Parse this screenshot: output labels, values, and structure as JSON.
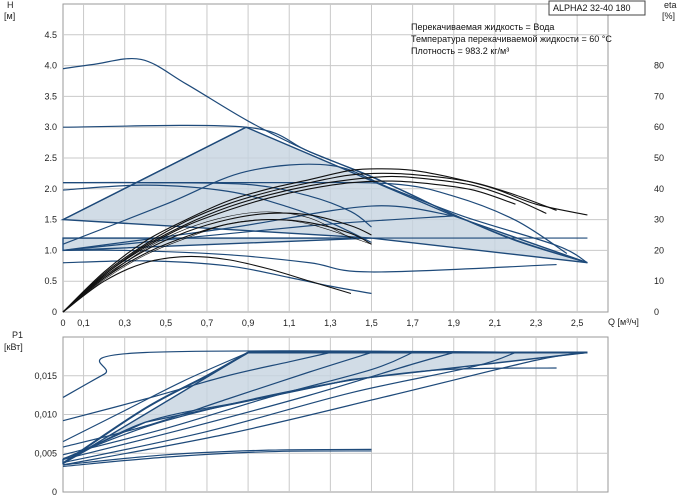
{
  "title": "ALPHA2 32-40 180",
  "info_lines": [
    "Перекачиваемая жидкость = Вода",
    "Температура перекачиваемой жидкости = 60 °C",
    "Плотность = 983.2 кг/м³"
  ],
  "chart_data": [
    {
      "type": "line",
      "name": "QH",
      "ylabel_line1": "H",
      "ylabel_line2": "[м]",
      "y2label_line1": "eta",
      "y2label_line2": "[%]",
      "xlabel": "Q [м³/ч]",
      "xlim": [
        0,
        2.65
      ],
      "ylim": [
        0,
        5.0
      ],
      "y2lim": [
        0,
        100
      ],
      "x_ticks": [
        "0",
        "0,1",
        "0,3",
        "0,5",
        "0,7",
        "0,9",
        "1,1",
        "1,3",
        "1,5",
        "1,7",
        "1,9",
        "2,1",
        "2,3",
        "2,5"
      ],
      "x_tick_values": [
        0,
        0.1,
        0.3,
        0.5,
        0.7,
        0.9,
        1.1,
        1.3,
        1.5,
        1.7,
        1.9,
        2.1,
        2.3,
        2.5
      ],
      "y_ticks": [
        "0",
        "0.5",
        "1.0",
        "1.5",
        "2.0",
        "2.5",
        "3.0",
        "3.5",
        "4.0",
        "4.5"
      ],
      "y_tick_values": [
        0,
        0.5,
        1.0,
        1.5,
        2.0,
        2.5,
        3.0,
        3.5,
        4.0,
        4.5
      ],
      "y2_ticks": [
        "0",
        "10",
        "20",
        "30",
        "40",
        "50",
        "60",
        "70",
        "80"
      ],
      "y2_tick_values": [
        0,
        10,
        20,
        30,
        40,
        50,
        60,
        70,
        80
      ],
      "region": [
        [
          0,
          1.5
        ],
        [
          0.89,
          3.0
        ],
        [
          1.9,
          1.56
        ],
        [
          2.55,
          0.8
        ],
        [
          1.5,
          1.2
        ],
        [
          0,
          1.2
        ],
        [
          0,
          1.0
        ],
        [
          1.5,
          1.2
        ],
        [
          0,
          1.5
        ]
      ],
      "series_blue": [
        [
          [
            0,
            3.95
          ],
          [
            0.15,
            4.02
          ],
          [
            0.38,
            4.1
          ],
          [
            0.6,
            3.7
          ],
          [
            0.9,
            3.1
          ],
          [
            1.2,
            2.6
          ],
          [
            1.5,
            2.2
          ],
          [
            1.9,
            1.58
          ],
          [
            2.2,
            1.16
          ],
          [
            2.55,
            0.8
          ]
        ],
        [
          [
            0,
            3.0
          ],
          [
            0.89,
            3.0
          ],
          [
            1.2,
            2.6
          ],
          [
            1.6,
            2.05
          ],
          [
            1.9,
            1.58
          ],
          [
            2.2,
            1.17
          ],
          [
            2.55,
            0.8
          ]
        ],
        [
          [
            0,
            1.5
          ],
          [
            0.89,
            3.0
          ]
        ],
        [
          [
            0,
            1.1
          ],
          [
            0.5,
            1.75
          ],
          [
            0.89,
            2.28
          ],
          [
            1.3,
            2.38
          ],
          [
            1.6,
            2.0
          ],
          [
            1.95,
            1.55
          ],
          [
            2.4,
            1.08
          ],
          [
            2.55,
            0.8
          ]
        ],
        [
          [
            0,
            2.1
          ],
          [
            0.4,
            2.1
          ],
          [
            0.9,
            2.07
          ],
          [
            1.2,
            1.88
          ],
          [
            1.4,
            1.63
          ],
          [
            1.5,
            1.38
          ]
        ],
        [
          [
            0,
            2.1
          ],
          [
            1.0,
            2.1
          ],
          [
            1.6,
            2.08
          ],
          [
            1.9,
            1.88
          ],
          [
            2.2,
            1.49
          ],
          [
            2.45,
            0.95
          ]
        ],
        [
          [
            0,
            1.98
          ],
          [
            0.4,
            2.06
          ],
          [
            0.8,
            1.96
          ],
          [
            1.1,
            1.7
          ],
          [
            1.3,
            1.45
          ],
          [
            1.5,
            1.13
          ]
        ],
        [
          [
            0,
            1.0
          ],
          [
            0.8,
            1.36
          ],
          [
            1.5,
            1.72
          ],
          [
            1.9,
            1.56
          ]
        ],
        [
          [
            0,
            1.0
          ],
          [
            1.2,
            1.4
          ],
          [
            1.9,
            1.56
          ]
        ],
        [
          [
            0,
            1.2
          ],
          [
            2.55,
            1.2
          ]
        ],
        [
          [
            0,
            1.0
          ],
          [
            0.3,
            1.0
          ],
          [
            0.8,
            0.93
          ],
          [
            1.2,
            0.8
          ],
          [
            1.5,
            0.65
          ],
          [
            2.4,
            0.77
          ]
        ],
        [
          [
            0,
            0.8
          ],
          [
            0.4,
            0.83
          ],
          [
            0.8,
            0.75
          ],
          [
            1.1,
            0.56
          ],
          [
            1.3,
            0.42
          ],
          [
            1.5,
            0.3
          ]
        ]
      ],
      "eta_series": [
        [
          [
            0,
            0
          ],
          [
            0.2,
            13
          ],
          [
            0.4,
            23
          ],
          [
            0.6,
            30
          ],
          [
            0.8,
            36
          ],
          [
            1.0,
            40
          ],
          [
            1.2,
            43
          ],
          [
            1.4,
            46
          ],
          [
            1.55,
            46.5
          ],
          [
            1.7,
            46
          ],
          [
            1.9,
            43.5
          ],
          [
            2.1,
            40
          ],
          [
            2.3,
            35
          ],
          [
            2.55,
            31.5
          ]
        ],
        [
          [
            0,
            0
          ],
          [
            0.2,
            12.5
          ],
          [
            0.4,
            22
          ],
          [
            0.6,
            29.5
          ],
          [
            0.8,
            35
          ],
          [
            1.0,
            39
          ],
          [
            1.2,
            42
          ],
          [
            1.4,
            44.5
          ],
          [
            1.6,
            45
          ],
          [
            1.8,
            44
          ],
          [
            2.0,
            42
          ],
          [
            2.2,
            38
          ],
          [
            2.4,
            33
          ]
        ],
        [
          [
            0,
            0
          ],
          [
            0.2,
            12
          ],
          [
            0.4,
            21.5
          ],
          [
            0.6,
            28.5
          ],
          [
            0.8,
            34
          ],
          [
            1.0,
            38
          ],
          [
            1.2,
            41
          ],
          [
            1.4,
            43
          ],
          [
            1.6,
            44
          ],
          [
            1.8,
            43
          ],
          [
            2.0,
            41
          ],
          [
            2.2,
            36.5
          ],
          [
            2.35,
            32
          ]
        ],
        [
          [
            0,
            0
          ],
          [
            0.2,
            12
          ],
          [
            0.4,
            21
          ],
          [
            0.6,
            28
          ],
          [
            0.8,
            33
          ],
          [
            1.0,
            37
          ],
          [
            1.2,
            40
          ],
          [
            1.4,
            42
          ],
          [
            1.6,
            42.5
          ],
          [
            1.8,
            41.5
          ],
          [
            2.0,
            39.5
          ],
          [
            2.2,
            35
          ]
        ],
        [
          [
            0,
            0
          ],
          [
            0.2,
            11.5
          ],
          [
            0.4,
            20
          ],
          [
            0.6,
            26
          ],
          [
            0.8,
            30
          ],
          [
            1.0,
            32
          ],
          [
            1.2,
            31.5
          ],
          [
            1.4,
            28
          ],
          [
            1.5,
            25
          ]
        ],
        [
          [
            0,
            0
          ],
          [
            0.2,
            11
          ],
          [
            0.4,
            19
          ],
          [
            0.6,
            24.5
          ],
          [
            0.8,
            28.5
          ],
          [
            1.0,
            30
          ],
          [
            1.2,
            29
          ],
          [
            1.4,
            25.5
          ],
          [
            1.5,
            22
          ]
        ],
        [
          [
            0,
            0
          ],
          [
            0.2,
            10
          ],
          [
            0.4,
            16
          ],
          [
            0.6,
            18
          ],
          [
            0.8,
            17
          ],
          [
            1.0,
            14
          ],
          [
            1.2,
            10
          ],
          [
            1.4,
            6
          ]
        ]
      ],
      "eta_thin": [
        [
          [
            0,
            0
          ],
          [
            0.2,
            11
          ],
          [
            0.4,
            20.5
          ],
          [
            0.6,
            27
          ],
          [
            0.8,
            31
          ],
          [
            1.0,
            32.5
          ],
          [
            1.2,
            30.5
          ],
          [
            1.4,
            24
          ]
        ],
        [
          [
            0,
            0
          ],
          [
            0.2,
            10.5
          ],
          [
            0.4,
            18.5
          ],
          [
            0.6,
            24
          ],
          [
            0.8,
            28.5
          ],
          [
            1.0,
            30
          ],
          [
            1.2,
            28.5
          ],
          [
            1.5,
            22
          ]
        ]
      ]
    },
    {
      "type": "line",
      "name": "P1",
      "ylabel_line1": "P1",
      "ylabel_line2": "[кВт]",
      "xlim": [
        0,
        2.65
      ],
      "ylim": [
        0,
        0.02
      ],
      "y_ticks": [
        "0",
        "0,005",
        "0,010",
        "0,015"
      ],
      "y_tick_values": [
        0,
        0.005,
        0.01,
        0.015
      ],
      "region": [
        [
          0,
          0.0037
        ],
        [
          0.9,
          0.018
        ],
        [
          1.9,
          0.018
        ],
        [
          2.55,
          0.018
        ],
        [
          1.4,
          0.0145
        ],
        [
          0.4,
          0.009
        ],
        [
          0,
          0.0042
        ]
      ],
      "series_blue": [
        [
          [
            0,
            0.0122
          ],
          [
            0.2,
            0.0152
          ],
          [
            0.4,
            0.018
          ],
          [
            2.55,
            0.018
          ]
        ],
        [
          [
            0,
            0.0065
          ],
          [
            0.3,
            0.0105
          ],
          [
            0.6,
            0.0145
          ],
          [
            0.9,
            0.018
          ]
        ],
        [
          [
            0,
            0.0092
          ],
          [
            0.4,
            0.012
          ],
          [
            0.8,
            0.015
          ],
          [
            1.1,
            0.0168
          ],
          [
            1.3,
            0.018
          ]
        ],
        [
          [
            0,
            0.0058
          ],
          [
            0.4,
            0.0085
          ],
          [
            0.8,
            0.012
          ],
          [
            1.2,
            0.0155
          ],
          [
            1.5,
            0.018
          ]
        ],
        [
          [
            0,
            0.0048
          ],
          [
            0.5,
            0.0082
          ],
          [
            1.0,
            0.0122
          ],
          [
            1.5,
            0.0158
          ],
          [
            1.7,
            0.018
          ]
        ],
        [
          [
            0,
            0.0042
          ],
          [
            0.6,
            0.0082
          ],
          [
            1.2,
            0.0125
          ],
          [
            1.7,
            0.0165
          ],
          [
            1.9,
            0.018
          ]
        ],
        [
          [
            0,
            0.0038
          ],
          [
            0.7,
            0.0078
          ],
          [
            1.4,
            0.0128
          ],
          [
            2.0,
            0.0162
          ],
          [
            2.2,
            0.018
          ]
        ],
        [
          [
            0,
            0.0035
          ],
          [
            0.8,
            0.0075
          ],
          [
            1.6,
            0.0125
          ],
          [
            2.3,
            0.017
          ],
          [
            2.55,
            0.018
          ]
        ],
        [
          [
            0,
            0.0037
          ],
          [
            0.4,
            0.009
          ],
          [
            0.9,
            0.0118
          ],
          [
            1.4,
            0.0145
          ]
        ],
        [
          [
            0,
            0.0043
          ],
          [
            0.5,
            0.0092
          ],
          [
            1.2,
            0.0135
          ],
          [
            1.8,
            0.0157
          ],
          [
            2.4,
            0.016
          ]
        ],
        [
          [
            0,
            0.0033
          ],
          [
            0.5,
            0.0045
          ],
          [
            1.0,
            0.0052
          ],
          [
            1.5,
            0.0053
          ]
        ],
        [
          [
            0,
            0.0035
          ],
          [
            0.5,
            0.0048
          ],
          [
            1.0,
            0.0054
          ],
          [
            1.5,
            0.0055
          ]
        ]
      ],
      "bold_series": [
        [
          [
            0,
            0.0037
          ],
          [
            0.4,
            0.0108
          ],
          [
            0.7,
            0.015
          ],
          [
            0.9,
            0.018
          ]
        ],
        [
          [
            0.9,
            0.018
          ],
          [
            2.55,
            0.018
          ]
        ]
      ]
    }
  ]
}
